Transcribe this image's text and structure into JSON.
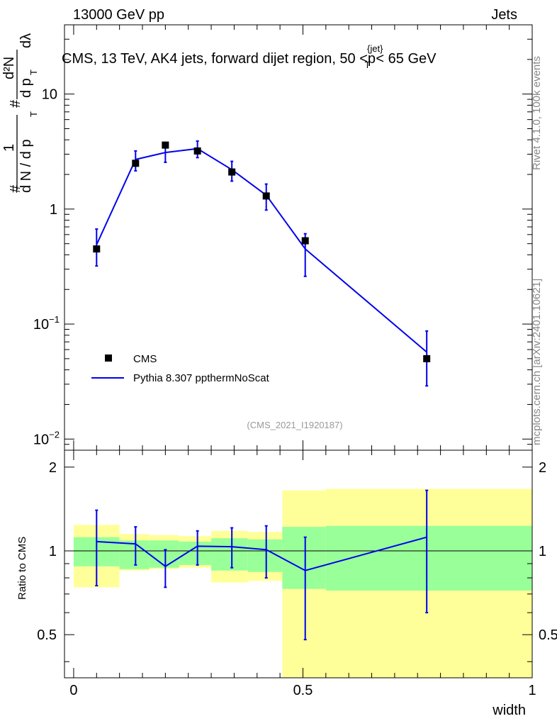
{
  "header": {
    "left": "13000 GeV pp",
    "right": "Jets"
  },
  "side_labels": {
    "rivet": "Rivet 4.1.0,  100k events",
    "mcplots": "mcplots.cern.ch [arXiv:2401.10621]"
  },
  "chart_data": [
    {
      "type": "scatter",
      "title": "CMS, 13 TeV, AK4 jets, forward dijet region, 50 <p_T^{jet}< 65 GeV",
      "title_parts": {
        "main": "CMS, 13 TeV, AK4 jets, forward dijet region, 50 <p",
        "sup": "{jet}",
        "sub": "T",
        "tail": "< 65 GeV"
      },
      "ylabel": "1/(dN/dp_T) d²N/(dp_T dλ)",
      "ylabel_parts": {
        "frac1_num": "1",
        "frac1_den": "d N / d p",
        "frac2_num": "d²N",
        "frac2_den": "d p",
        "dlambda": "dλ",
        "T": "T",
        "hash": "#"
      },
      "xlabel": "width",
      "yscale": "log",
      "ylim": [
        0.008,
        40
      ],
      "xlim": [
        -0.02,
        1.0
      ],
      "y_tick_labels": [
        "10^-2",
        "10^-1",
        "1",
        "10"
      ],
      "y_tick_display": [
        {
          "mant": "10",
          "exp": "−2"
        },
        {
          "mant": "10",
          "exp": "−1"
        },
        {
          "mant": "1",
          "exp": ""
        },
        {
          "mant": "10",
          "exp": ""
        }
      ],
      "watermark": "(CMS_2021_I1920187)",
      "legend_position": "lower-left",
      "series": [
        {
          "name": "CMS",
          "marker": "square",
          "color": "#000000",
          "x": [
            0.05,
            0.135,
            0.2,
            0.27,
            0.345,
            0.42,
            0.505,
            0.77
          ],
          "y": [
            0.45,
            2.5,
            3.6,
            3.2,
            2.1,
            1.3,
            0.53,
            0.05
          ]
        },
        {
          "name": "Pythia 8.307 ppthermNoScat",
          "marker": "line",
          "color": "#0000ee",
          "x": [
            0.05,
            0.135,
            0.2,
            0.27,
            0.345,
            0.42,
            0.505,
            0.77
          ],
          "y": [
            0.49,
            2.7,
            3.1,
            3.35,
            2.2,
            1.32,
            0.45,
            0.057
          ],
          "yerr_low": [
            0.32,
            2.15,
            2.55,
            2.8,
            1.75,
            0.98,
            0.26,
            0.029
          ],
          "yerr_high": [
            0.67,
            3.2,
            3.7,
            3.9,
            2.6,
            1.65,
            0.61,
            0.087
          ]
        }
      ]
    },
    {
      "type": "line",
      "ylabel": "Ratio to CMS",
      "xlabel": "width",
      "ylim": [
        0.35,
        2.3
      ],
      "xlim": [
        -0.02,
        1.0
      ],
      "reference_line": 1.0,
      "y_tick_labels": [
        "0.5",
        "1",
        "2"
      ],
      "x_tick_labels": [
        "0",
        "0.5",
        "1"
      ],
      "series": [
        {
          "name": "Pythia 8.307 ppthermNoScat / CMS",
          "color": "#0000ee",
          "x": [
            0.05,
            0.135,
            0.2,
            0.27,
            0.345,
            0.42,
            0.505,
            0.77
          ],
          "y": [
            1.08,
            1.06,
            0.88,
            1.04,
            1.035,
            1.01,
            0.85,
            1.12
          ],
          "yerr_low": [
            0.75,
            0.89,
            0.74,
            0.89,
            0.87,
            0.8,
            0.48,
            0.6
          ],
          "yerr_high": [
            1.4,
            1.22,
            1.01,
            1.18,
            1.21,
            1.23,
            1.12,
            1.65
          ]
        }
      ],
      "bands": {
        "edges": [
          0.0,
          0.1,
          0.165,
          0.23,
          0.3,
          0.38,
          0.455,
          0.55,
          1.0
        ],
        "inner_color": "#99ff99",
        "outer_color": "#ffff99",
        "inner_low": [
          0.88,
          0.86,
          0.87,
          0.89,
          0.85,
          0.84,
          0.73,
          0.72
        ],
        "inner_high": [
          1.12,
          1.09,
          1.09,
          1.08,
          1.11,
          1.1,
          1.22,
          1.23
        ],
        "outer_low": [
          0.74,
          0.85,
          0.86,
          0.87,
          0.77,
          0.78,
          0.33,
          0.33
        ],
        "outer_high": [
          1.24,
          1.15,
          1.14,
          1.13,
          1.18,
          1.17,
          1.65,
          1.67
        ]
      }
    }
  ]
}
